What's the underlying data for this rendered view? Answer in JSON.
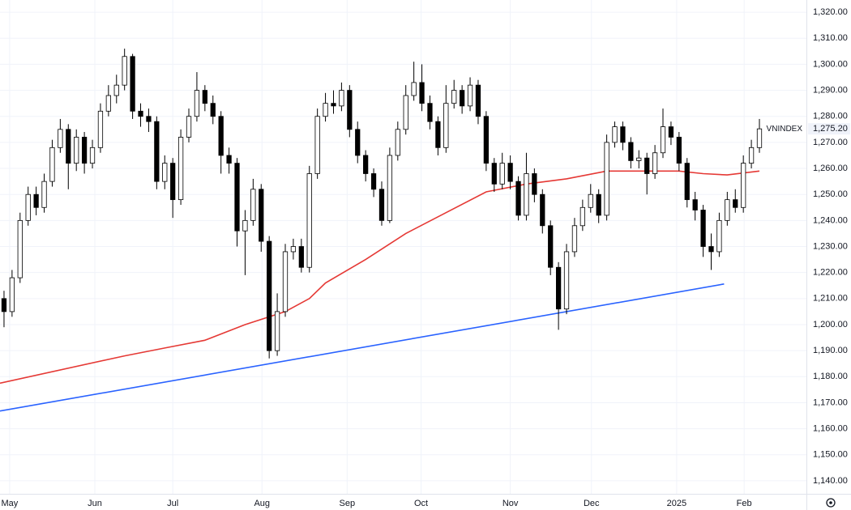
{
  "chart_data": {
    "type": "candlestick",
    "series": [
      {
        "name": "VNINDEX",
        "up_color": "#ffffff",
        "down_color": "#000000",
        "border_color": "#000000",
        "open": [
          1210,
          1205,
          1218,
          1240,
          1250,
          1245,
          1255,
          1268,
          1275,
          1262,
          1272,
          1262,
          1268,
          1282,
          1288,
          1292,
          1303,
          1282,
          1280,
          1278,
          1255,
          1262,
          1248,
          1272,
          1280,
          1290,
          1285,
          1280,
          1265,
          1262,
          1236,
          1240,
          1252,
          1232,
          1190,
          1205,
          1228,
          1230,
          1222,
          1258,
          1280,
          1285,
          1284,
          1290,
          1275,
          1265,
          1258,
          1252,
          1240,
          1265,
          1275,
          1288,
          1293,
          1285,
          1278,
          1268,
          1285,
          1290,
          1284,
          1292,
          1280,
          1262,
          1254,
          1262,
          1255,
          1242,
          1258,
          1250,
          1238,
          1222,
          1206,
          1228,
          1238,
          1245,
          1250,
          1242,
          1270,
          1276,
          1270,
          1263,
          1264,
          1258,
          1266,
          1276,
          1272,
          1262,
          1248,
          1244,
          1230,
          1228,
          1240,
          1248,
          1245,
          1262,
          1268
        ],
        "high": [
          1213,
          1221,
          1243,
          1253,
          1253,
          1258,
          1271,
          1279,
          1277,
          1275,
          1274,
          1271,
          1285,
          1292,
          1296,
          1306,
          1304,
          1285,
          1283,
          1280,
          1265,
          1264,
          1275,
          1283,
          1297,
          1292,
          1288,
          1282,
          1268,
          1264,
          1244,
          1256,
          1254,
          1234,
          1212,
          1231,
          1233,
          1233,
          1261,
          1283,
          1289,
          1290,
          1293,
          1292,
          1278,
          1267,
          1260,
          1255,
          1268,
          1278,
          1292,
          1301,
          1300,
          1288,
          1280,
          1292,
          1294,
          1292,
          1295,
          1294,
          1282,
          1264,
          1266,
          1265,
          1257,
          1266,
          1260,
          1252,
          1240,
          1224,
          1231,
          1241,
          1248,
          1254,
          1252,
          1273,
          1278,
          1278,
          1272,
          1267,
          1266,
          1269,
          1283,
          1278,
          1274,
          1264,
          1251,
          1246,
          1235,
          1243,
          1251,
          1252,
          1265,
          1271,
          1279
        ],
        "low": [
          1199,
          1203,
          1216,
          1238,
          1242,
          1243,
          1253,
          1266,
          1252,
          1259,
          1258,
          1260,
          1266,
          1280,
          1285,
          1290,
          1279,
          1276,
          1274,
          1252,
          1252,
          1241,
          1246,
          1270,
          1278,
          1282,
          1277,
          1258,
          1258,
          1230,
          1219,
          1238,
          1228,
          1187,
          1188,
          1203,
          1225,
          1220,
          1220,
          1256,
          1278,
          1281,
          1282,
          1272,
          1262,
          1255,
          1249,
          1238,
          1239,
          1263,
          1273,
          1286,
          1282,
          1275,
          1265,
          1266,
          1283,
          1281,
          1282,
          1277,
          1259,
          1251,
          1252,
          1252,
          1240,
          1240,
          1247,
          1235,
          1219,
          1198,
          1204,
          1226,
          1236,
          1243,
          1239,
          1240,
          1268,
          1267,
          1260,
          1260,
          1250,
          1256,
          1264,
          1269,
          1259,
          1245,
          1240,
          1226,
          1221,
          1226,
          1238,
          1243,
          1243,
          1260,
          1266
        ],
        "close": [
          1205,
          1218,
          1240,
          1250,
          1245,
          1255,
          1268,
          1275,
          1262,
          1272,
          1262,
          1268,
          1282,
          1288,
          1292,
          1303,
          1282,
          1280,
          1278,
          1255,
          1262,
          1248,
          1272,
          1280,
          1290,
          1285,
          1280,
          1265,
          1262,
          1236,
          1240,
          1252,
          1232,
          1190,
          1205,
          1228,
          1230,
          1222,
          1258,
          1280,
          1285,
          1284,
          1290,
          1275,
          1265,
          1258,
          1252,
          1240,
          1265,
          1275,
          1288,
          1293,
          1285,
          1278,
          1268,
          1285,
          1290,
          1284,
          1292,
          1280,
          1262,
          1254,
          1262,
          1255,
          1242,
          1258,
          1250,
          1238,
          1222,
          1206,
          1228,
          1238,
          1245,
          1250,
          1242,
          1270,
          1276,
          1270,
          1263,
          1264,
          1258,
          1266,
          1276,
          1272,
          1262,
          1248,
          1244,
          1230,
          1228,
          1240,
          1248,
          1245,
          1262,
          1268,
          1275.2
        ]
      }
    ],
    "last_value_label": "1,275.20",
    "lines": [
      {
        "color": "#e53935",
        "x": [
          -0.5,
          15,
          20,
          25,
          30,
          35,
          38,
          40,
          45,
          50,
          55,
          60,
          65,
          70,
          75,
          80,
          84,
          87,
          90,
          94
        ],
        "values": [
          1177.5,
          1188,
          1191,
          1194,
          1200,
          1205,
          1210,
          1216,
          1225,
          1235,
          1243,
          1251,
          1254,
          1256,
          1259,
          1259,
          1259,
          1258,
          1257.5,
          1259
        ]
      },
      {
        "color": "#2962ff",
        "x": [
          -0.5,
          89.6
        ],
        "values": [
          1166.8,
          1215.6
        ]
      }
    ],
    "xlim": [
      -0.5,
      99.85
    ],
    "xticks": [
      {
        "value": 0.7,
        "label": "May"
      },
      {
        "value": 11.3,
        "label": "Jun"
      },
      {
        "value": 21,
        "label": "Jul"
      },
      {
        "value": 32.1,
        "label": "Aug"
      },
      {
        "value": 42.7,
        "label": "Sep"
      },
      {
        "value": 51.9,
        "label": "Oct"
      },
      {
        "value": 63,
        "label": "Nov"
      },
      {
        "value": 73.1,
        "label": "Dec"
      },
      {
        "value": 83.7,
        "label": "2025"
      },
      {
        "value": 92.1,
        "label": "Feb"
      }
    ],
    "ylim": [
      1135,
      1324.7
    ],
    "yticks": [
      {
        "value": 1140,
        "label": "1,140.00"
      },
      {
        "value": 1150,
        "label": "1,150.00"
      },
      {
        "value": 1160,
        "label": "1,160.00"
      },
      {
        "value": 1170,
        "label": "1,170.00"
      },
      {
        "value": 1180,
        "label": "1,180.00"
      },
      {
        "value": 1190,
        "label": "1,190.00"
      },
      {
        "value": 1200,
        "label": "1,200.00"
      },
      {
        "value": 1210,
        "label": "1,210.00"
      },
      {
        "value": 1220,
        "label": "1,220.00"
      },
      {
        "value": 1230,
        "label": "1,230.00"
      },
      {
        "value": 1240,
        "label": "1,240.00"
      },
      {
        "value": 1250,
        "label": "1,250.00"
      },
      {
        "value": 1260,
        "label": "1,260.00"
      },
      {
        "value": 1270,
        "label": "1,270.00"
      },
      {
        "value": 1280,
        "label": "1,280.00"
      },
      {
        "value": 1290,
        "label": "1,290.00"
      },
      {
        "value": 1300,
        "label": "1,300.00"
      },
      {
        "value": 1310,
        "label": "1,310.00"
      },
      {
        "value": 1320,
        "label": "1,320.00"
      }
    ],
    "grid": true
  }
}
